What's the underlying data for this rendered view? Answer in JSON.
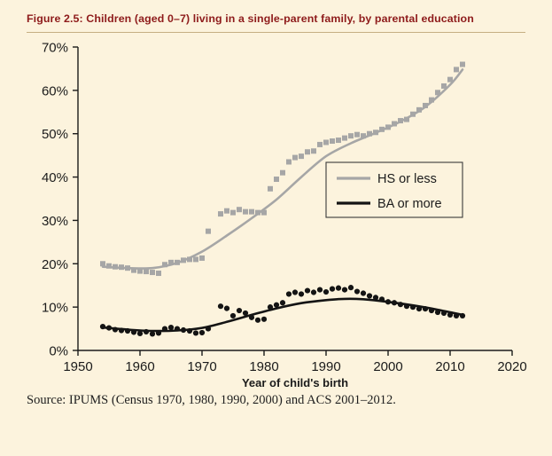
{
  "figure": {
    "title": "Figure 2.5: Children (aged 0–7) living in a single-parent family, by parental education",
    "source": "Source: IPUMS (Census 1970, 1980, 1990, 2000) and ACS 2001–2012."
  },
  "colors": {
    "background": "#fcf3dd",
    "title": "#8e1b1b",
    "rule": "#c5ae82",
    "axis": "#1b1b1b",
    "hs_series": "#a6a6a6",
    "ba_series": "#141414"
  },
  "chart_data": {
    "type": "scatter",
    "title": "",
    "xlabel": "Year of child's birth",
    "ylabel": "",
    "xlim": [
      1950,
      2020
    ],
    "ylim": [
      0,
      70
    ],
    "x_ticks": [
      1950,
      1960,
      1970,
      1980,
      1990,
      2000,
      2010,
      2020
    ],
    "y_ticks": [
      0,
      10,
      20,
      30,
      40,
      50,
      60,
      70
    ],
    "y_tick_suffix": "%",
    "grid": false,
    "legend_position": "middle-right",
    "x": [
      1954,
      1955,
      1956,
      1957,
      1958,
      1959,
      1960,
      1961,
      1962,
      1963,
      1964,
      1965,
      1966,
      1967,
      1968,
      1969,
      1970,
      1971,
      1973,
      1974,
      1975,
      1976,
      1977,
      1978,
      1979,
      1980,
      1981,
      1982,
      1983,
      1984,
      1985,
      1986,
      1987,
      1988,
      1989,
      1990,
      1991,
      1992,
      1993,
      1994,
      1995,
      1996,
      1997,
      1998,
      1999,
      2000,
      2001,
      2002,
      2003,
      2004,
      2005,
      2006,
      2007,
      2008,
      2009,
      2010,
      2011,
      2012
    ],
    "series": [
      {
        "name": "HS or less",
        "color": "#a6a6a6",
        "marker": "square",
        "values": [
          20.0,
          19.5,
          19.3,
          19.2,
          19.0,
          18.5,
          18.3,
          18.2,
          18.0,
          17.8,
          19.8,
          20.3,
          20.3,
          20.8,
          21.0,
          21.0,
          21.3,
          27.5,
          31.5,
          32.2,
          31.8,
          32.5,
          32.0,
          32.0,
          31.8,
          31.8,
          37.3,
          39.5,
          41.0,
          43.5,
          44.5,
          44.8,
          45.8,
          46.0,
          47.5,
          48.0,
          48.3,
          48.5,
          49.0,
          49.5,
          49.8,
          49.5,
          50.0,
          50.3,
          51.0,
          51.5,
          52.3,
          53.0,
          53.3,
          54.5,
          55.5,
          56.5,
          57.8,
          59.5,
          61.0,
          62.5,
          64.8,
          66.0
        ],
        "trend": {
          "x": [
            1954,
            1958,
            1962,
            1966,
            1970,
            1974,
            1978,
            1982,
            1986,
            1990,
            1994,
            1998,
            2002,
            2006,
            2010,
            2012
          ],
          "values": [
            19.3,
            19.0,
            19.0,
            20.2,
            22.8,
            26.5,
            30.5,
            34.8,
            40.0,
            44.8,
            47.8,
            50.2,
            52.8,
            56.2,
            61.3,
            64.8
          ]
        }
      },
      {
        "name": "BA or more",
        "color": "#141414",
        "marker": "circle",
        "values": [
          5.5,
          5.2,
          4.8,
          4.6,
          4.5,
          4.2,
          3.9,
          4.3,
          3.8,
          4.0,
          5.0,
          5.3,
          5.0,
          4.7,
          4.5,
          4.0,
          4.1,
          5.0,
          10.2,
          9.7,
          8.0,
          9.2,
          8.6,
          7.6,
          7.0,
          7.2,
          10.0,
          10.5,
          11.0,
          13.0,
          13.4,
          13.0,
          13.8,
          13.4,
          14.0,
          13.5,
          14.2,
          14.4,
          14.0,
          14.5,
          13.6,
          13.2,
          12.6,
          12.2,
          11.8,
          11.2,
          11.0,
          10.6,
          10.2,
          10.0,
          9.6,
          9.6,
          9.2,
          8.8,
          8.6,
          8.2,
          8.0,
          8.0
        ],
        "trend": {
          "x": [
            1954,
            1958,
            1962,
            1966,
            1970,
            1974,
            1978,
            1982,
            1986,
            1990,
            1993,
            1996,
            2000,
            2004,
            2008,
            2012
          ],
          "values": [
            5.3,
            4.8,
            4.5,
            4.6,
            5.2,
            6.6,
            8.2,
            9.7,
            10.9,
            11.6,
            11.9,
            11.8,
            11.2,
            10.4,
            9.4,
            8.2
          ]
        }
      }
    ]
  }
}
